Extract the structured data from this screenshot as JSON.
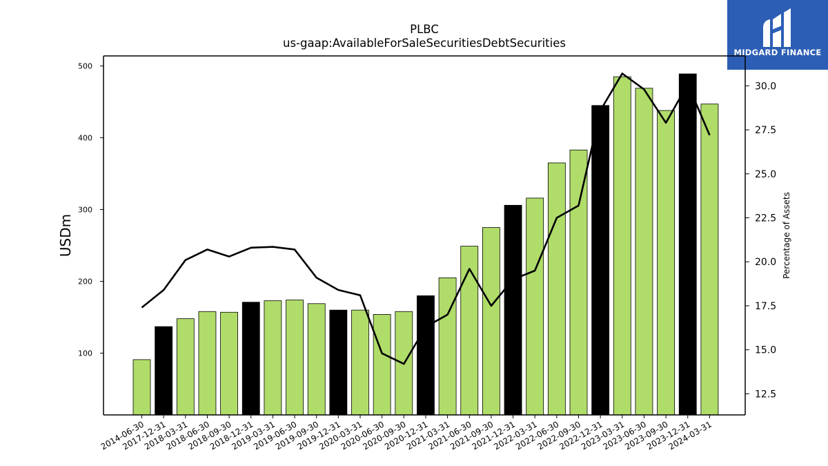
{
  "title": "PLBC",
  "subtitle": "us-gaap:AvailableForSaleSecuritiesDebtSecurities",
  "logo": {
    "text": "MIDGARD FINANCE",
    "icon": "midgard-logo-icon",
    "color": "#2c5eb5"
  },
  "chart_data": {
    "type": "bar",
    "title": "PLBC",
    "subtitle": "us-gaap:AvailableForSaleSecuritiesDebtSecurities",
    "ylabel": "USDm",
    "y2label": "Percentage of Assets",
    "ylim": [
      14,
      514
    ],
    "y2lim": [
      11.3,
      31.7
    ],
    "yticks": [
      100,
      200,
      300,
      400,
      500
    ],
    "y2ticks": [
      "12.5",
      "15.0",
      "17.5",
      "20.0",
      "22.5",
      "25.0",
      "27.5",
      "30.0"
    ],
    "categories": [
      "2014-06-30",
      "2017-12-31",
      "2018-03-31",
      "2018-06-30",
      "2018-09-30",
      "2018-12-31",
      "2019-03-31",
      "2019-06-30",
      "2019-09-30",
      "2019-12-31",
      "2020-03-31",
      "2020-06-30",
      "2020-09-30",
      "2020-12-31",
      "2021-03-31",
      "2021-06-30",
      "2021-09-30",
      "2021-12-31",
      "2022-03-31",
      "2022-06-30",
      "2022-09-30",
      "2022-12-31",
      "2023-03-31",
      "2023-06-30",
      "2023-09-30",
      "2023-12-31",
      "2024-03-31"
    ],
    "series": [
      {
        "type": "bar",
        "values": [
          91,
          137,
          148,
          158,
          157,
          171,
          173,
          174,
          169,
          160,
          160,
          154,
          158,
          180,
          205,
          249,
          275,
          306,
          316,
          365,
          383,
          445,
          485,
          469,
          438,
          489,
          447
        ],
        "highlight": [
          false,
          true,
          false,
          false,
          false,
          true,
          false,
          false,
          false,
          true,
          false,
          false,
          false,
          true,
          false,
          false,
          false,
          true,
          false,
          false,
          false,
          true,
          false,
          false,
          false,
          true,
          false
        ],
        "color": "#b0dc6a",
        "highlight_color": "#000000"
      },
      {
        "type": "line",
        "axis": "right",
        "values": [
          17.4,
          18.4,
          20.1,
          20.7,
          20.3,
          20.8,
          20.85,
          20.7,
          19.1,
          18.4,
          18.1,
          14.8,
          14.2,
          16.3,
          17.0,
          19.6,
          17.5,
          19.0,
          19.5,
          22.5,
          23.2,
          28.6,
          30.7,
          29.8,
          27.9,
          30.1,
          27.2
        ],
        "color": "#000000"
      }
    ],
    "grid": false,
    "legend": "none"
  }
}
